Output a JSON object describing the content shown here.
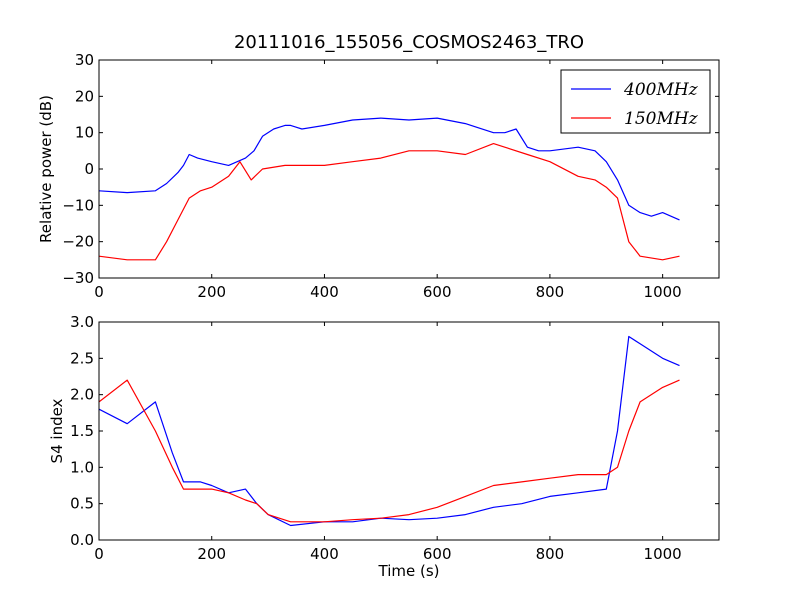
{
  "chart_data": [
    {
      "type": "line",
      "title": "20111016_155056_COSMOS2463_TRO",
      "xlabel": "",
      "ylabel": "Relative power (dB)",
      "xlim": [
        0,
        1100
      ],
      "ylim": [
        -30,
        30
      ],
      "xticks": [
        0,
        200,
        400,
        600,
        800,
        1000
      ],
      "yticks": [
        -30,
        -20,
        -10,
        0,
        10,
        20,
        30
      ],
      "xtick_labels": [
        "0",
        "200",
        "400",
        "600",
        "800",
        "1000"
      ],
      "ytick_labels": [
        "−30",
        "−20",
        "−10",
        "0",
        "10",
        "20",
        "30"
      ],
      "grid": false,
      "legend": {
        "placement": "top-right",
        "entries": [
          "400MHz",
          "150MHz"
        ]
      },
      "series": [
        {
          "name": "400MHz",
          "color": "#0000ff",
          "x": [
            0,
            50,
            100,
            120,
            140,
            150,
            160,
            175,
            200,
            230,
            260,
            275,
            290,
            310,
            330,
            340,
            360,
            400,
            450,
            500,
            550,
            600,
            650,
            700,
            720,
            740,
            760,
            780,
            800,
            850,
            880,
            900,
            920,
            940,
            960,
            980,
            1000,
            1030
          ],
          "y": [
            -6,
            -6.5,
            -6,
            -4,
            -1,
            1,
            4,
            3,
            2,
            1,
            3,
            5,
            9,
            11,
            12,
            12,
            11,
            12,
            13.5,
            14,
            13.5,
            14,
            12.5,
            10,
            10,
            11,
            6,
            5,
            5,
            6,
            5,
            2,
            -3,
            -10,
            -12,
            -13,
            -12,
            -14
          ]
        },
        {
          "name": "150MHz",
          "color": "#ff0000",
          "x": [
            0,
            50,
            100,
            120,
            140,
            160,
            180,
            200,
            230,
            250,
            270,
            290,
            330,
            400,
            450,
            500,
            550,
            600,
            650,
            700,
            720,
            760,
            800,
            850,
            880,
            900,
            920,
            940,
            960,
            1000,
            1030
          ],
          "y": [
            -24,
            -25,
            -25,
            -20,
            -14,
            -8,
            -6,
            -5,
            -2,
            2,
            -3,
            0,
            1,
            1,
            2,
            3,
            5,
            5,
            4,
            7,
            6,
            4,
            2,
            -2,
            -3,
            -5,
            -8,
            -20,
            -24,
            -25,
            -24
          ]
        }
      ]
    },
    {
      "type": "line",
      "title": "",
      "xlabel": "Time (s)",
      "ylabel": "S4 index",
      "xlim": [
        0,
        1100
      ],
      "ylim": [
        0,
        3
      ],
      "xticks": [
        0,
        200,
        400,
        600,
        800,
        1000
      ],
      "yticks": [
        0,
        0.5,
        1,
        1.5,
        2,
        2.5,
        3
      ],
      "xtick_labels": [
        "0",
        "200",
        "400",
        "600",
        "800",
        "1000"
      ],
      "ytick_labels": [
        "0.0",
        "0.5",
        "1.0",
        "1.5",
        "2.0",
        "2.5",
        "3.0"
      ],
      "grid": false,
      "series": [
        {
          "name": "400MHz",
          "color": "#0000ff",
          "x": [
            0,
            50,
            100,
            130,
            150,
            180,
            200,
            230,
            260,
            280,
            300,
            340,
            400,
            450,
            500,
            550,
            600,
            650,
            700,
            750,
            800,
            850,
            900,
            920,
            940,
            960,
            1000,
            1030
          ],
          "y": [
            1.8,
            1.6,
            1.9,
            1.2,
            0.8,
            0.8,
            0.75,
            0.65,
            0.7,
            0.5,
            0.35,
            0.2,
            0.25,
            0.25,
            0.3,
            0.28,
            0.3,
            0.35,
            0.45,
            0.5,
            0.6,
            0.65,
            0.7,
            1.5,
            2.8,
            2.7,
            2.5,
            2.4
          ]
        },
        {
          "name": "150MHz",
          "color": "#ff0000",
          "x": [
            0,
            50,
            100,
            130,
            150,
            180,
            200,
            230,
            260,
            280,
            300,
            340,
            400,
            450,
            500,
            550,
            600,
            650,
            700,
            750,
            800,
            850,
            900,
            920,
            940,
            960,
            1000,
            1030
          ],
          "y": [
            1.9,
            2.2,
            1.5,
            1.0,
            0.7,
            0.7,
            0.7,
            0.65,
            0.55,
            0.5,
            0.35,
            0.25,
            0.25,
            0.28,
            0.3,
            0.35,
            0.45,
            0.6,
            0.75,
            0.8,
            0.85,
            0.9,
            0.9,
            1.0,
            1.5,
            1.9,
            2.1,
            2.2
          ]
        }
      ]
    }
  ]
}
